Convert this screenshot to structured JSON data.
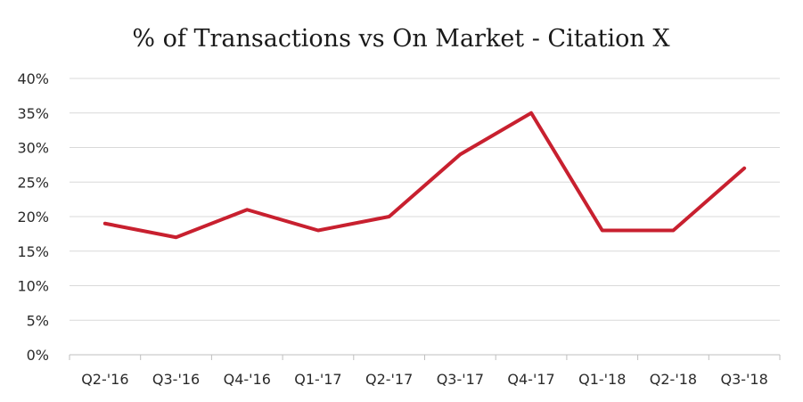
{
  "chart_data": {
    "type": "line",
    "title": "% of Transactions vs On Market - Citation X",
    "xlabel": "",
    "ylabel": "",
    "categories": [
      "Q2-'16",
      "Q3-'16",
      "Q4-'16",
      "Q1-'17",
      "Q2-'17",
      "Q3-'17",
      "Q4-'17",
      "Q1-'18",
      "Q2-'18",
      "Q3-'18"
    ],
    "series": [
      {
        "values": [
          19,
          17,
          21,
          18,
          20,
          29,
          35,
          18,
          18,
          27
        ],
        "color": "#c8202f"
      }
    ],
    "ylim": [
      0,
      40
    ],
    "yticks": [
      0,
      5,
      10,
      15,
      20,
      25,
      30,
      35,
      40
    ],
    "ytick_labels": [
      "0%",
      "5%",
      "10%",
      "15%",
      "20%",
      "25%",
      "30%",
      "35%",
      "40%"
    ],
    "grid": true,
    "legend": "none"
  }
}
